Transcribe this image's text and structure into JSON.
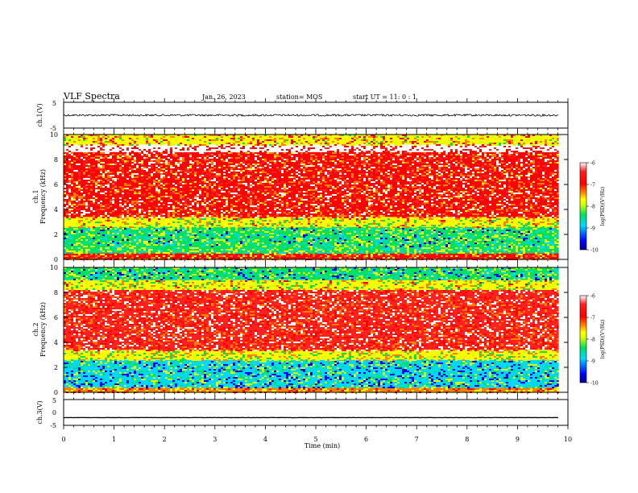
{
  "header": {
    "title": "VLF Spectra",
    "date": "Jan. 26, 2023",
    "station": "station= MOS",
    "start": "start  UT =   11: 0  : 1"
  },
  "chart_data": {
    "type": "heatmap",
    "x_axis": {
      "label": "Time  (min)",
      "range": [
        0,
        10
      ],
      "ticks": [
        0,
        1,
        2,
        3,
        4,
        5,
        6,
        7,
        8,
        9,
        10
      ]
    },
    "panels": [
      {
        "id": "ch1_waveform",
        "kind": "line",
        "ylabel": "ch.1(V)",
        "ylim": [
          -5,
          5
        ],
        "yticks": [
          "5",
          "-5"
        ],
        "level_V": 0,
        "data_end_min": 9.82
      },
      {
        "id": "ch1_spectrogram",
        "kind": "heatmap",
        "ylabel": "ch.1\nFrequency  (kHz)",
        "ylim": [
          0,
          10
        ],
        "yticks": [
          0,
          2,
          4,
          6,
          8,
          10
        ],
        "data_end_min": 9.82,
        "bands_kHz_log10PSD": [
          {
            "from": 0,
            "to": 0.5,
            "level": -7.2
          },
          {
            "from": 0.5,
            "to": 1.0,
            "level": -8.4
          },
          {
            "from": 1.0,
            "to": 2.6,
            "level": -8.6
          },
          {
            "from": 2.6,
            "to": 3.4,
            "level": -7.9
          },
          {
            "from": 3.4,
            "to": 8.6,
            "level": -6.9
          },
          {
            "from": 8.6,
            "to": 9.2,
            "level": -6.4
          },
          {
            "from": 9.2,
            "to": 10,
            "level": -7.7
          }
        ]
      },
      {
        "id": "ch2_spectrogram",
        "kind": "heatmap",
        "ylabel": "ch.2\nFrequency  (kHz)",
        "ylim": [
          0,
          10
        ],
        "yticks": [
          0,
          2,
          4,
          6,
          8,
          10
        ],
        "data_end_min": 9.82,
        "bands_kHz_log10PSD": [
          {
            "from": 0,
            "to": 0.4,
            "level": -7.5
          },
          {
            "from": 0.4,
            "to": 2.6,
            "level": -8.8
          },
          {
            "from": 2.6,
            "to": 3.4,
            "level": -8.0
          },
          {
            "from": 3.4,
            "to": 8.2,
            "level": -6.8
          },
          {
            "from": 8.2,
            "to": 9.0,
            "level": -7.9
          },
          {
            "from": 9.0,
            "to": 10,
            "level": -8.7
          }
        ]
      },
      {
        "id": "ch3_waveform",
        "kind": "line",
        "ylabel": "ch.3(V)",
        "ylim": [
          -5,
          5
        ],
        "yticks": [
          "5",
          "0",
          "-5"
        ],
        "level_V": -2,
        "data_end_min": 9.82
      }
    ],
    "colorbar": {
      "label": "log(PSD)(V²/Hz)",
      "range": [
        -10,
        -6
      ],
      "ticks": [
        "-6",
        "-7",
        "-8",
        "-9",
        "-10"
      ],
      "colors": [
        "#000090",
        "#0000ff",
        "#00d8ff",
        "#00e060",
        "#d8ff00",
        "#ffff00",
        "#ff8000",
        "#ff0000",
        "#ff2020",
        "#ffffff"
      ]
    },
    "grid": false,
    "legend": "colorbars right of each spectrogram"
  }
}
